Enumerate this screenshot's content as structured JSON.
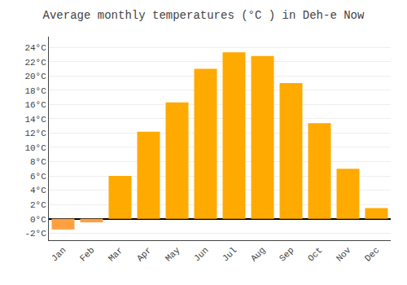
{
  "chart_data": {
    "type": "bar",
    "title": "Average monthly temperatures (°C ) in Deh-e Now",
    "categories": [
      "Jan",
      "Feb",
      "Mar",
      "Apr",
      "May",
      "Jun",
      "Jul",
      "Aug",
      "Sep",
      "Oct",
      "Nov",
      "Dec"
    ],
    "values": [
      -1.5,
      -0.5,
      6.0,
      12.2,
      16.3,
      21.0,
      23.3,
      22.8,
      19.0,
      13.4,
      7.0,
      1.5
    ],
    "colors": [
      "#FFA040",
      "#FFA040",
      "#FFAA00",
      "#FFAA00",
      "#FFAA00",
      "#FFAA00",
      "#FFAA00",
      "#FFAA00",
      "#FFAA00",
      "#FFAA00",
      "#FFAA00",
      "#FFAA00"
    ],
    "ylim": [
      -3,
      25.5
    ],
    "yticks": [
      {
        "value": -2,
        "label": "-2°C"
      },
      {
        "value": 0,
        "label": "0°C"
      },
      {
        "value": 2,
        "label": "2°C"
      },
      {
        "value": 4,
        "label": "4°C"
      },
      {
        "value": 6,
        "label": "6°C"
      },
      {
        "value": 8,
        "label": "8°C"
      },
      {
        "value": 10,
        "label": "10°C"
      },
      {
        "value": 12,
        "label": "12°C"
      },
      {
        "value": 14,
        "label": "14°C"
      },
      {
        "value": 16,
        "label": "16°C"
      },
      {
        "value": 18,
        "label": "18°C"
      },
      {
        "value": 20,
        "label": "20°C"
      },
      {
        "value": 22,
        "label": "22°C"
      },
      {
        "value": 24,
        "label": "24°C"
      }
    ],
    "grid": true
  }
}
